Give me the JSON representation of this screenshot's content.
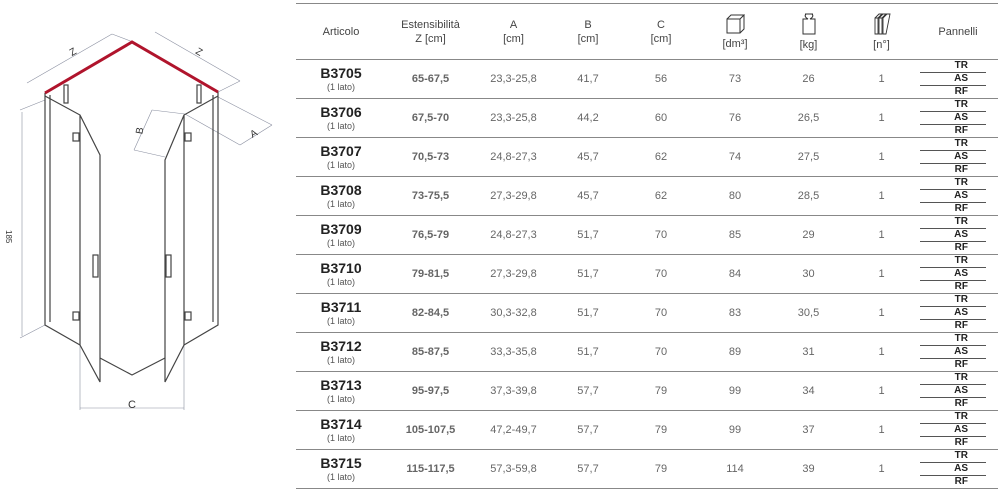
{
  "diagram": {
    "labels": {
      "z_left": "Z",
      "z_right": "Z",
      "b": "B",
      "a": "A",
      "c": "C",
      "height": "185"
    },
    "accent_color": "#b0142c"
  },
  "header": {
    "articolo": "Articolo",
    "estensibilita_1": "Estensibilità",
    "estensibilita_2": "Z [cm]",
    "a_1": "A",
    "a_2": "[cm]",
    "b_1": "B",
    "b_2": "[cm]",
    "c_1": "C",
    "c_2": "[cm]",
    "volume": "[dm³]",
    "volume_icon": "box-icon",
    "weight": "[kg]",
    "weight_icon": "weight-icon",
    "panels_count": "[n°]",
    "panels_icon": "panels-icon",
    "pannelli": "Pannelli"
  },
  "rows": [
    {
      "code": "B3705",
      "note": "(1 lato)",
      "z": "65-67,5",
      "a": "23,3-25,8",
      "b": "41,7",
      "c": "56",
      "dm3": "73",
      "kg": "26",
      "n": "1",
      "pannelli": [
        "TR",
        "AS",
        "RF"
      ]
    },
    {
      "code": "B3706",
      "note": "(1 lato)",
      "z": "67,5-70",
      "a": "23,3-25,8",
      "b": "44,2",
      "c": "60",
      "dm3": "76",
      "kg": "26,5",
      "n": "1",
      "pannelli": [
        "TR",
        "AS",
        "RF"
      ]
    },
    {
      "code": "B3707",
      "note": "(1 lato)",
      "z": "70,5-73",
      "a": "24,8-27,3",
      "b": "45,7",
      "c": "62",
      "dm3": "74",
      "kg": "27,5",
      "n": "1",
      "pannelli": [
        "TR",
        "AS",
        "RF"
      ]
    },
    {
      "code": "B3708",
      "note": "(1 lato)",
      "z": "73-75,5",
      "a": "27,3-29,8",
      "b": "45,7",
      "c": "62",
      "dm3": "80",
      "kg": "28,5",
      "n": "1",
      "pannelli": [
        "TR",
        "AS",
        "RF"
      ]
    },
    {
      "code": "B3709",
      "note": "(1 lato)",
      "z": "76,5-79",
      "a": "24,8-27,3",
      "b": "51,7",
      "c": "70",
      "dm3": "85",
      "kg": "29",
      "n": "1",
      "pannelli": [
        "TR",
        "AS",
        "RF"
      ]
    },
    {
      "code": "B3710",
      "note": "(1 lato)",
      "z": "79-81,5",
      "a": "27,3-29,8",
      "b": "51,7",
      "c": "70",
      "dm3": "84",
      "kg": "30",
      "n": "1",
      "pannelli": [
        "TR",
        "AS",
        "RF"
      ]
    },
    {
      "code": "B3711",
      "note": "(1 lato)",
      "z": "82-84,5",
      "a": "30,3-32,8",
      "b": "51,7",
      "c": "70",
      "dm3": "83",
      "kg": "30,5",
      "n": "1",
      "pannelli": [
        "TR",
        "AS",
        "RF"
      ]
    },
    {
      "code": "B3712",
      "note": "(1 lato)",
      "z": "85-87,5",
      "a": "33,3-35,8",
      "b": "51,7",
      "c": "70",
      "dm3": "89",
      "kg": "31",
      "n": "1",
      "pannelli": [
        "TR",
        "AS",
        "RF"
      ]
    },
    {
      "code": "B3713",
      "note": "(1 lato)",
      "z": "95-97,5",
      "a": "37,3-39,8",
      "b": "57,7",
      "c": "79",
      "dm3": "99",
      "kg": "34",
      "n": "1",
      "pannelli": [
        "TR",
        "AS",
        "RF"
      ]
    },
    {
      "code": "B3714",
      "note": "(1 lato)",
      "z": "105-107,5",
      "a": "47,2-49,7",
      "b": "57,7",
      "c": "79",
      "dm3": "99",
      "kg": "37",
      "n": "1",
      "pannelli": [
        "TR",
        "AS",
        "RF"
      ]
    },
    {
      "code": "B3715",
      "note": "(1 lato)",
      "z": "115-117,5",
      "a": "57,3-59,8",
      "b": "57,7",
      "c": "79",
      "dm3": "114",
      "kg": "39",
      "n": "1",
      "pannelli": [
        "TR",
        "AS",
        "RF"
      ]
    }
  ]
}
